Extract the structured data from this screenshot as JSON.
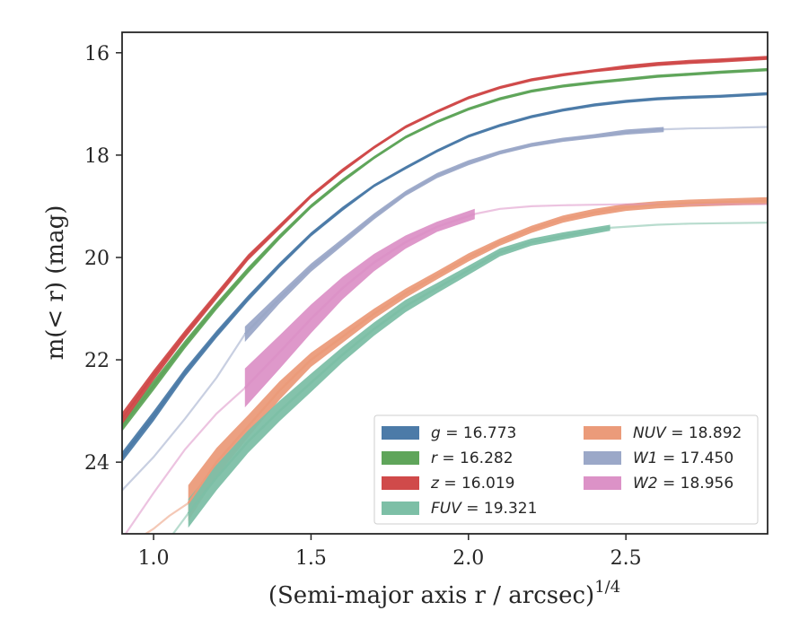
{
  "chart_data": {
    "type": "line",
    "xlabel": "(Semi-major axis r / arcsec)",
    "xlabel_sup": "1/4",
    "ylabel": "m(< r) (mag)",
    "xlim": [
      0.9,
      2.95
    ],
    "ylim": [
      25.4,
      15.6
    ],
    "y_inverted": true,
    "xticks": [
      1.0,
      1.5,
      2.0,
      2.5
    ],
    "xtick_labels": [
      "1.0",
      "1.5",
      "2.0",
      "2.5"
    ],
    "yticks": [
      16,
      18,
      20,
      22,
      24
    ],
    "ytick_labels": [
      "16",
      "18",
      "20",
      "22",
      "24"
    ],
    "grid": false,
    "legend_position": "lower-right",
    "series": [
      {
        "key": "g",
        "name": "g = 16.773",
        "label_var": "g",
        "label_val": "16.773",
        "color": "#4c7ba8",
        "x": [
          0.9,
          1.0,
          1.1,
          1.2,
          1.3,
          1.4,
          1.5,
          1.6,
          1.7,
          1.8,
          1.9,
          2.0,
          2.1,
          2.2,
          2.3,
          2.4,
          2.5,
          2.6,
          2.7,
          2.8,
          2.95
        ],
        "y": [
          23.9,
          23.1,
          22.25,
          21.5,
          20.8,
          20.15,
          19.55,
          19.05,
          18.6,
          18.25,
          17.92,
          17.63,
          17.42,
          17.25,
          17.12,
          17.02,
          16.95,
          16.9,
          16.87,
          16.85,
          16.8
        ],
        "band": [
          0.1,
          0.1,
          0.08,
          0.07,
          0.06,
          0.05,
          0.04,
          0.04,
          0.03,
          0.03,
          0.03,
          0.03,
          0.03,
          0.03,
          0.03,
          0.03,
          0.03,
          0.03,
          0.03,
          0.03,
          0.03
        ]
      },
      {
        "key": "r",
        "name": "r = 16.282",
        "label_var": "r",
        "label_val": "16.282",
        "color": "#5fa55a",
        "x": [
          0.9,
          1.0,
          1.1,
          1.2,
          1.3,
          1.4,
          1.5,
          1.6,
          1.7,
          1.8,
          1.9,
          2.0,
          2.1,
          2.2,
          2.3,
          2.4,
          2.5,
          2.6,
          2.7,
          2.8,
          2.95
        ],
        "y": [
          23.3,
          22.5,
          21.7,
          20.95,
          20.25,
          19.6,
          19.0,
          18.5,
          18.05,
          17.65,
          17.35,
          17.1,
          16.9,
          16.75,
          16.65,
          16.58,
          16.52,
          16.46,
          16.42,
          16.38,
          16.33
        ],
        "band": [
          0.1,
          0.1,
          0.08,
          0.07,
          0.06,
          0.05,
          0.04,
          0.04,
          0.03,
          0.03,
          0.03,
          0.03,
          0.03,
          0.03,
          0.03,
          0.03,
          0.03,
          0.03,
          0.03,
          0.03,
          0.03
        ]
      },
      {
        "key": "z",
        "name": "z = 16.019",
        "label_var": "z",
        "label_val": "16.019",
        "color": "#d04a4a",
        "x": [
          0.9,
          1.0,
          1.1,
          1.2,
          1.3,
          1.4,
          1.5,
          1.6,
          1.7,
          1.8,
          1.9,
          2.0,
          2.1,
          2.2,
          2.3,
          2.4,
          2.5,
          2.6,
          2.7,
          2.8,
          2.95
        ],
        "y": [
          23.15,
          22.3,
          21.5,
          20.75,
          20.0,
          19.4,
          18.8,
          18.3,
          17.85,
          17.45,
          17.15,
          16.88,
          16.68,
          16.53,
          16.43,
          16.35,
          16.28,
          16.22,
          16.18,
          16.15,
          16.1
        ],
        "band": [
          0.12,
          0.1,
          0.08,
          0.07,
          0.06,
          0.05,
          0.04,
          0.04,
          0.03,
          0.03,
          0.03,
          0.03,
          0.03,
          0.03,
          0.03,
          0.03,
          0.04,
          0.04,
          0.04,
          0.04,
          0.04
        ]
      },
      {
        "key": "W1",
        "name": "W1 = 17.450",
        "label_var": "W1",
        "label_val": "17.450",
        "color": "#9ba8c8",
        "x": [
          1.29,
          1.4,
          1.5,
          1.6,
          1.7,
          1.8,
          1.9,
          2.0,
          2.1,
          2.2,
          2.3,
          2.4,
          2.5,
          2.62
        ],
        "y": [
          21.5,
          20.8,
          20.2,
          19.7,
          19.2,
          18.75,
          18.4,
          18.15,
          17.95,
          17.8,
          17.7,
          17.63,
          17.55,
          17.5
        ],
        "band": [
          0.15,
          0.1,
          0.08,
          0.07,
          0.06,
          0.05,
          0.05,
          0.05,
          0.04,
          0.04,
          0.04,
          0.04,
          0.05,
          0.05
        ],
        "extension": {
          "x": [
            0.9,
            1.0,
            1.1,
            1.2,
            1.29,
            1.4,
            1.5,
            1.6,
            1.7,
            1.8,
            1.9,
            2.0,
            2.1,
            2.2,
            2.3,
            2.4,
            2.5,
            2.6,
            2.7,
            2.8,
            2.95
          ],
          "y": [
            24.55,
            23.9,
            23.15,
            22.35,
            21.5,
            20.8,
            20.2,
            19.7,
            19.2,
            18.75,
            18.4,
            18.15,
            17.95,
            17.8,
            17.7,
            17.63,
            17.55,
            17.5,
            17.48,
            17.47,
            17.45
          ]
        }
      },
      {
        "key": "W2",
        "name": "W2 = 18.956",
        "label_var": "W2",
        "label_val": "18.956",
        "color": "#dc92c7",
        "x": [
          1.29,
          1.4,
          1.5,
          1.6,
          1.7,
          1.8,
          1.9,
          2.02
        ],
        "y": [
          22.55,
          21.85,
          21.2,
          20.6,
          20.1,
          19.7,
          19.4,
          19.15
        ],
        "band": [
          0.38,
          0.33,
          0.28,
          0.22,
          0.17,
          0.13,
          0.1,
          0.1
        ],
        "extension": {
          "x": [
            0.9,
            1.0,
            1.1,
            1.2,
            1.29,
            1.4,
            1.5,
            1.6,
            1.7,
            1.8,
            1.9,
            2.02,
            2.1,
            2.2,
            2.3,
            2.4,
            2.5,
            2.6,
            2.7,
            2.8,
            2.95
          ],
          "y": [
            25.5,
            24.6,
            23.75,
            23.05,
            22.55,
            21.85,
            21.2,
            20.6,
            20.1,
            19.7,
            19.4,
            19.15,
            19.05,
            19.0,
            18.98,
            18.97,
            18.96,
            18.96,
            18.96,
            18.96,
            18.96
          ]
        }
      },
      {
        "key": "NUV",
        "name": "NUV = 18.892",
        "label_var": "NUV",
        "label_val": "18.892",
        "color": "#eb9b7a",
        "x": [
          1.11,
          1.2,
          1.3,
          1.4,
          1.5,
          1.6,
          1.7,
          1.8,
          1.9,
          2.0,
          2.1,
          2.2,
          2.3,
          2.4,
          2.5,
          2.6,
          2.7,
          2.8,
          2.95
        ],
        "y": [
          24.8,
          24.0,
          23.3,
          22.6,
          22.0,
          21.55,
          21.1,
          20.7,
          20.35,
          20.0,
          19.7,
          19.45,
          19.25,
          19.12,
          19.02,
          18.97,
          18.94,
          18.92,
          18.89
        ],
        "band": [
          0.35,
          0.28,
          0.22,
          0.18,
          0.14,
          0.12,
          0.1,
          0.09,
          0.08,
          0.08,
          0.07,
          0.07,
          0.07,
          0.07,
          0.07,
          0.07,
          0.07,
          0.07,
          0.07
        ],
        "extension": {
          "x": [
            0.95,
            1.0,
            1.05,
            1.11
          ],
          "y": [
            25.5,
            25.3,
            25.05,
            24.8
          ]
        }
      },
      {
        "key": "FUV",
        "name": "FUV = 19.321",
        "label_var": "FUV",
        "label_val": "19.321",
        "color": "#7dbfa6",
        "x": [
          1.11,
          1.2,
          1.3,
          1.4,
          1.5,
          1.6,
          1.7,
          1.8,
          1.9,
          2.0,
          2.1,
          2.2,
          2.3,
          2.45
        ],
        "y": [
          25.0,
          24.3,
          23.6,
          23.0,
          22.45,
          21.9,
          21.4,
          20.95,
          20.6,
          20.25,
          19.9,
          19.7,
          19.58,
          19.42
        ],
        "band": [
          0.28,
          0.25,
          0.22,
          0.2,
          0.18,
          0.15,
          0.13,
          0.12,
          0.1,
          0.09,
          0.08,
          0.07,
          0.07,
          0.06
        ],
        "extension": {
          "x": [
            1.05,
            1.11,
            1.2,
            1.3,
            1.4,
            1.5,
            1.6,
            1.7,
            1.8,
            1.9,
            2.0,
            2.1,
            2.2,
            2.3,
            2.45,
            2.6,
            2.7,
            2.8,
            2.95
          ],
          "y": [
            25.5,
            25.0,
            24.3,
            23.6,
            23.0,
            22.45,
            21.9,
            21.4,
            20.95,
            20.6,
            20.25,
            19.9,
            19.7,
            19.58,
            19.42,
            19.36,
            19.34,
            19.33,
            19.32
          ]
        }
      }
    ],
    "legend_order": [
      "g",
      "NUV",
      "r",
      "W1",
      "z",
      "W2",
      "FUV"
    ]
  }
}
